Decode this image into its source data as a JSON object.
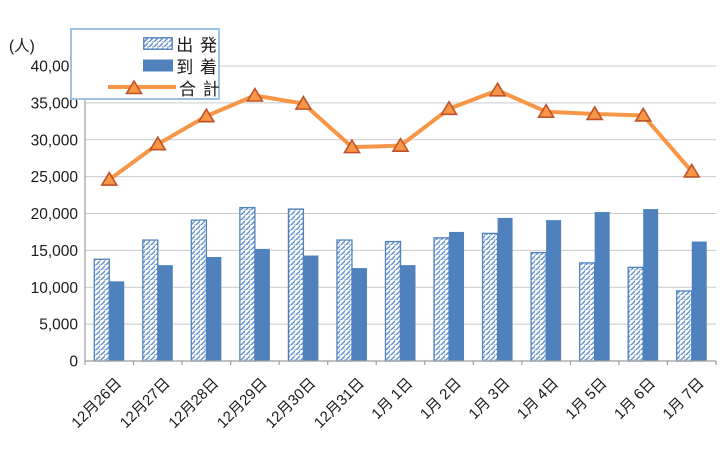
{
  "unit_label": "(人)",
  "legend": {
    "items": [
      {
        "label": "出 発",
        "swatch": "hatched-bar"
      },
      {
        "label": "到 着",
        "swatch": "solid-bar"
      },
      {
        "label": "合 計",
        "swatch": "line-marker"
      }
    ]
  },
  "colors": {
    "bar_blue": "#4F81BD",
    "hatch_stripe": "#5E8FC9",
    "line_orange": "#F79646",
    "marker_fill": "#F79646",
    "marker_edge": "#C0522A",
    "gridline": "#C9C9C9",
    "axis": "#9E9E9E",
    "text": "#1A1A1A",
    "legend_border": "#9CC2E5"
  },
  "y_axis": {
    "tick_labels": [
      "0",
      "5,000",
      "10,000",
      "15,000",
      "20,000",
      "25,000",
      "30,000",
      "35,000",
      "40,000"
    ]
  },
  "chart_data": {
    "type": "bar",
    "subtype": "grouped-bars-with-line-overlay",
    "categories": [
      "12月26日",
      "12月27日",
      "12月28日",
      "12月29日",
      "12月30日",
      "12月31日",
      "1月 1日",
      "1月 2日",
      "1月 3日",
      "1月 4日",
      "1月 5日",
      "1月 6日",
      "1月 7日"
    ],
    "series": [
      {
        "name": "出発",
        "type": "bar",
        "style": "hatched",
        "values": [
          13800,
          16400,
          19100,
          20800,
          20600,
          16400,
          16200,
          16700,
          17300,
          14700,
          13300,
          12700,
          9500
        ]
      },
      {
        "name": "到着",
        "type": "bar",
        "style": "solid",
        "values": [
          10800,
          13000,
          14100,
          15200,
          14300,
          12600,
          13000,
          17500,
          19400,
          19100,
          20200,
          20600,
          16200
        ]
      },
      {
        "name": "合計",
        "type": "line",
        "marker": "triangle",
        "values": [
          24600,
          29400,
          33200,
          36000,
          34900,
          29000,
          29200,
          34200,
          36700,
          33800,
          33500,
          33300,
          25700
        ]
      }
    ],
    "title": "",
    "xlabel": "",
    "ylabel": "(人)",
    "ylim": [
      0,
      40000
    ],
    "ytick_step": 5000,
    "grid": true,
    "legend_position": "top-left",
    "x_tick_label_rotation": -45
  }
}
